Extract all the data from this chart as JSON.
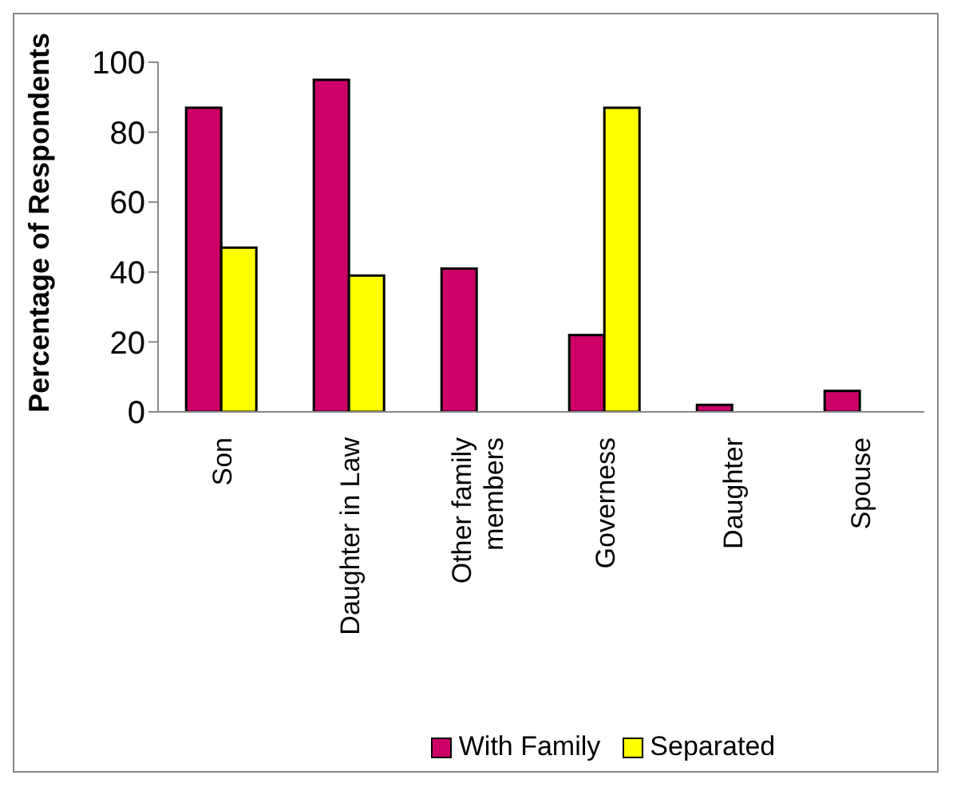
{
  "chart_data": {
    "type": "bar",
    "ylabel": "Percentage of Respondents",
    "categories": [
      "Son",
      "Daughter in Law",
      "Other family members",
      "Governess",
      "Daughter",
      "Spouse"
    ],
    "series": [
      {
        "name": "With Family",
        "color": "#cc0066",
        "values": [
          87,
          95,
          41,
          22,
          2,
          6
        ]
      },
      {
        "name": "Separated",
        "color": "#ffff00",
        "values": [
          47,
          39,
          0,
          87,
          0,
          0
        ]
      }
    ],
    "ylim": [
      0,
      100
    ],
    "yticks": [
      0,
      20,
      40,
      60,
      80,
      100
    ],
    "grid": false,
    "legend": "bottom"
  }
}
